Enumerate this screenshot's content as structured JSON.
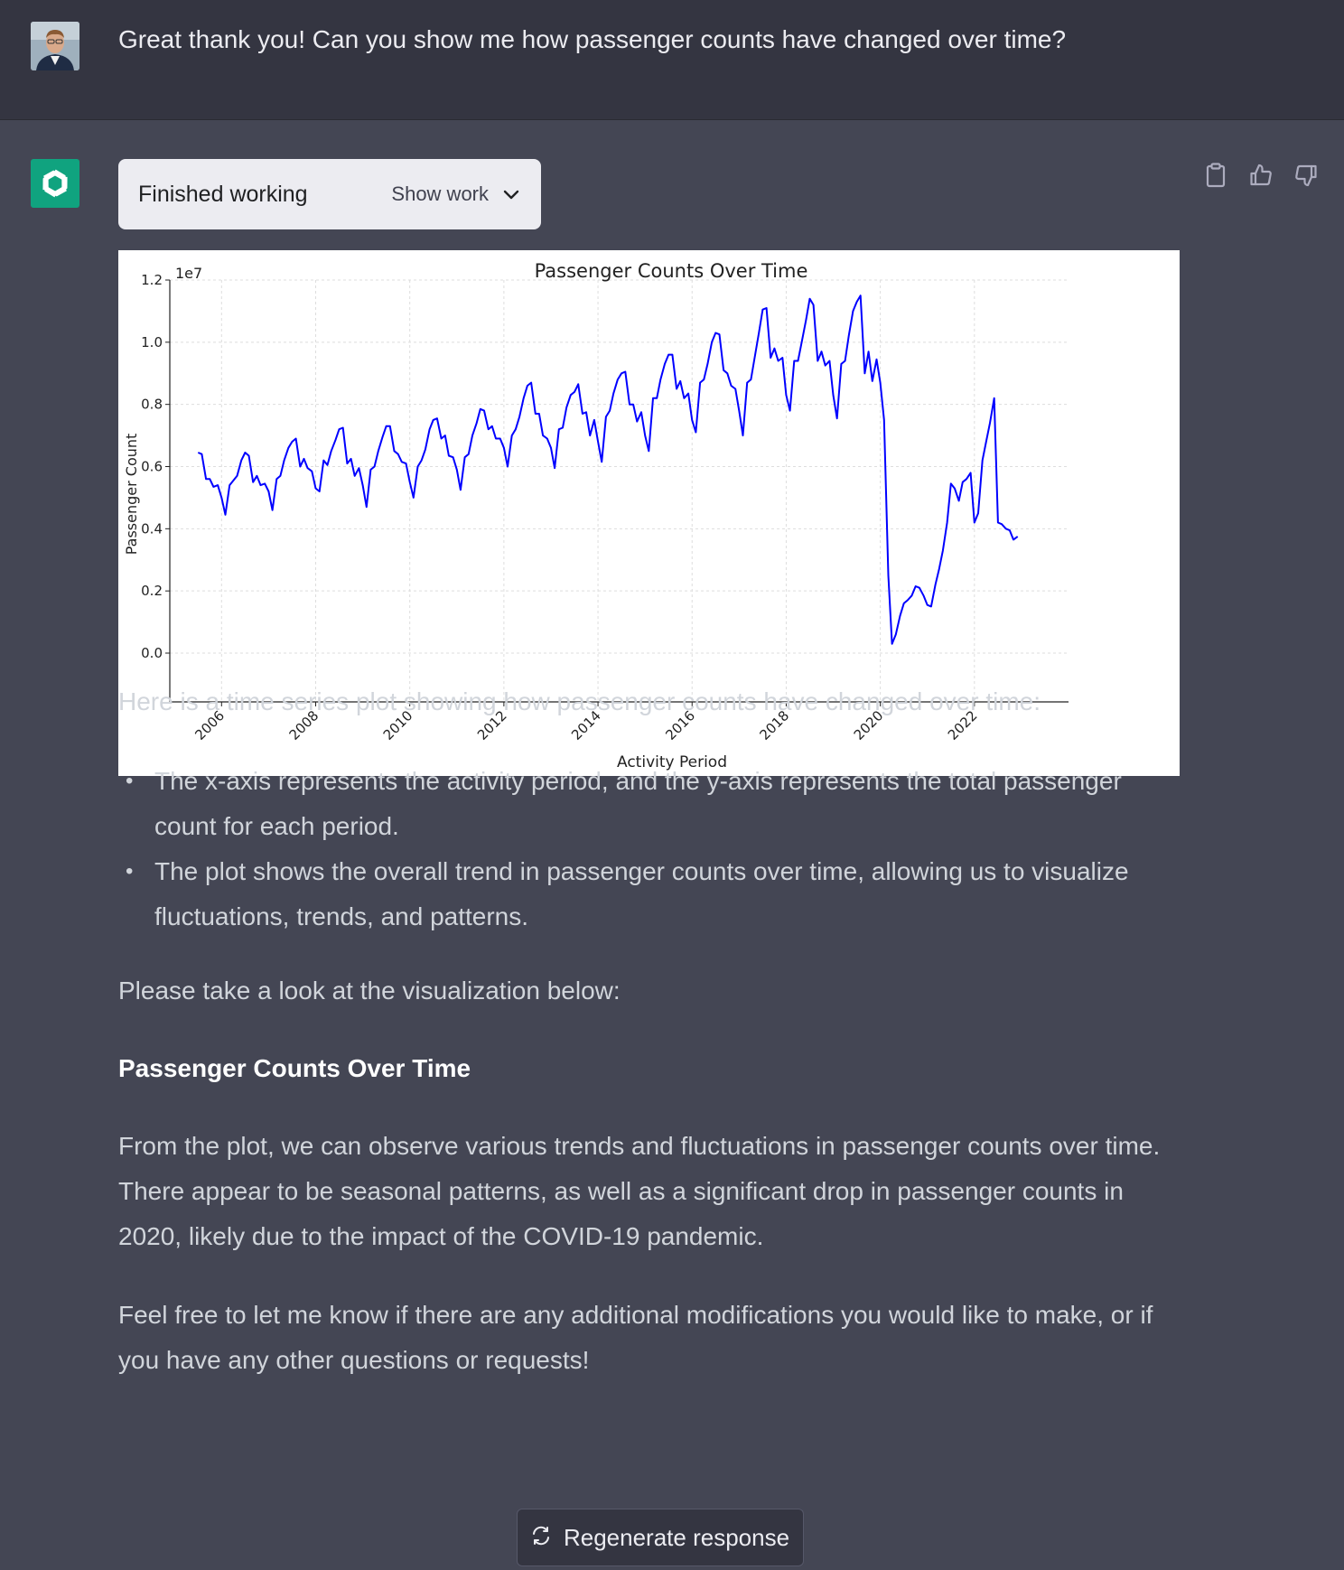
{
  "user_message": {
    "text": "Great thank you! Can you show me how passenger counts have changed over time?"
  },
  "assistant": {
    "work_status": "Finished working",
    "show_work_label": "Show work",
    "actions": [
      "copy-icon",
      "thumbs-up-icon",
      "thumbs-down-icon"
    ],
    "intro": "Here is a time series plot showing how passenger counts have changed over time:",
    "bullets": [
      "The x-axis represents the activity period, and the y-axis represents the total passenger count for each period.",
      "The plot shows the overall trend in passenger counts over time, allowing us to visualize fluctuations, trends, and patterns."
    ],
    "lead_in": "Please take a look at the visualization below:",
    "bold_heading": "Passenger Counts Over Time",
    "observation": "From the plot, we can observe various trends and fluctuations in passenger counts over time. There appear to be seasonal patterns, as well as a significant drop in passenger counts in 2020, likely due to the impact of the COVID-19 pandemic.",
    "closing": "Feel free to let me know if there are any additional modifications you would like to make, or if you have any other questions or requests!"
  },
  "regenerate_label": "Regenerate response",
  "colors": {
    "accent": "#10a37f",
    "line": "#0000ff",
    "page_bg": "#444654",
    "user_bg": "#343541"
  },
  "chart_data": {
    "type": "line",
    "title": "Passenger Counts Over Time",
    "xlabel": "Activity Period",
    "ylabel": "Passenger Count",
    "y_offset_label": "1e7",
    "xlim": [
      2004.9,
      2024.0
    ],
    "ylim": [
      0,
      1.2
    ],
    "xticks": [
      2006,
      2008,
      2010,
      2012,
      2014,
      2016,
      2018,
      2020,
      2022
    ],
    "yticks": [
      0.0,
      0.2,
      0.4,
      0.6,
      0.8,
      1.0,
      1.2
    ],
    "grid": true,
    "series": [
      {
        "x": [
          2005.5,
          2005.58,
          2005.67,
          2005.75,
          2005.83,
          2005.92,
          2006.0,
          2006.08,
          2006.17,
          2006.25,
          2006.33,
          2006.42,
          2006.5,
          2006.58,
          2006.67,
          2006.75,
          2006.83,
          2006.92,
          2007.0,
          2007.08,
          2007.17,
          2007.25,
          2007.33,
          2007.42,
          2007.5,
          2007.58,
          2007.67,
          2007.75,
          2007.83,
          2007.92,
          2008.0,
          2008.08,
          2008.17,
          2008.25,
          2008.33,
          2008.42,
          2008.5,
          2008.58,
          2008.67,
          2008.75,
          2008.83,
          2008.92,
          2009.0,
          2009.08,
          2009.17,
          2009.25,
          2009.33,
          2009.42,
          2009.5,
          2009.58,
          2009.67,
          2009.75,
          2009.83,
          2009.92,
          2010.0,
          2010.08,
          2010.17,
          2010.25,
          2010.33,
          2010.42,
          2010.5,
          2010.58,
          2010.67,
          2010.75,
          2010.83,
          2010.92,
          2011.0,
          2011.08,
          2011.17,
          2011.25,
          2011.33,
          2011.42,
          2011.5,
          2011.58,
          2011.67,
          2011.75,
          2011.83,
          2011.92,
          2012.0,
          2012.08,
          2012.17,
          2012.25,
          2012.33,
          2012.42,
          2012.5,
          2012.58,
          2012.67,
          2012.75,
          2012.83,
          2012.92,
          2013.0,
          2013.08,
          2013.17,
          2013.25,
          2013.33,
          2013.42,
          2013.5,
          2013.58,
          2013.67,
          2013.75,
          2013.83,
          2013.92,
          2014.0,
          2014.08,
          2014.17,
          2014.25,
          2014.33,
          2014.42,
          2014.5,
          2014.58,
          2014.67,
          2014.75,
          2014.83,
          2014.92,
          2015.0,
          2015.08,
          2015.17,
          2015.25,
          2015.33,
          2015.42,
          2015.5,
          2015.58,
          2015.67,
          2015.75,
          2015.83,
          2015.92,
          2016.0,
          2016.08,
          2016.17,
          2016.25,
          2016.33,
          2016.42,
          2016.5,
          2016.58,
          2016.67,
          2016.75,
          2016.83,
          2016.92,
          2017.0,
          2017.08,
          2017.17,
          2017.25,
          2017.33,
          2017.42,
          2017.5,
          2017.58,
          2017.67,
          2017.75,
          2017.83,
          2017.92,
          2018.0,
          2018.08,
          2018.17,
          2018.25,
          2018.33,
          2018.42,
          2018.5,
          2018.58,
          2018.67,
          2018.75,
          2018.83,
          2018.92,
          2019.0,
          2019.08,
          2019.17,
          2019.25,
          2019.33,
          2019.42,
          2019.5,
          2019.58,
          2019.67,
          2019.75,
          2019.83,
          2019.92,
          2020.0,
          2020.08,
          2020.17,
          2020.25,
          2020.33,
          2020.42,
          2020.5,
          2020.58,
          2020.67,
          2020.75,
          2020.83,
          2020.92,
          2021.0,
          2021.08,
          2021.17,
          2021.25,
          2021.33,
          2021.42,
          2021.5,
          2021.58,
          2021.67,
          2021.75,
          2021.83,
          2021.92,
          2022.0,
          2022.08,
          2022.17,
          2022.25,
          2022.33,
          2022.42,
          2022.5,
          2022.58,
          2022.67,
          2022.75,
          2022.83,
          2022.92
        ],
        "values": [
          0.645,
          0.64,
          0.56,
          0.56,
          0.535,
          0.54,
          0.5,
          0.445,
          0.54,
          0.555,
          0.57,
          0.62,
          0.645,
          0.635,
          0.55,
          0.57,
          0.54,
          0.545,
          0.52,
          0.46,
          0.56,
          0.57,
          0.62,
          0.66,
          0.68,
          0.69,
          0.6,
          0.625,
          0.595,
          0.585,
          0.53,
          0.52,
          0.62,
          0.605,
          0.65,
          0.685,
          0.72,
          0.725,
          0.61,
          0.625,
          0.57,
          0.595,
          0.54,
          0.47,
          0.59,
          0.6,
          0.65,
          0.695,
          0.73,
          0.73,
          0.65,
          0.64,
          0.615,
          0.61,
          0.55,
          0.5,
          0.6,
          0.62,
          0.655,
          0.72,
          0.75,
          0.755,
          0.69,
          0.7,
          0.635,
          0.63,
          0.59,
          0.525,
          0.63,
          0.64,
          0.7,
          0.74,
          0.785,
          0.78,
          0.72,
          0.73,
          0.69,
          0.69,
          0.66,
          0.6,
          0.7,
          0.72,
          0.76,
          0.82,
          0.86,
          0.87,
          0.77,
          0.77,
          0.7,
          0.69,
          0.66,
          0.595,
          0.72,
          0.725,
          0.79,
          0.83,
          0.84,
          0.865,
          0.77,
          0.775,
          0.7,
          0.75,
          0.68,
          0.615,
          0.76,
          0.78,
          0.835,
          0.88,
          0.9,
          0.905,
          0.8,
          0.8,
          0.745,
          0.775,
          0.7,
          0.65,
          0.82,
          0.82,
          0.88,
          0.93,
          0.96,
          0.96,
          0.85,
          0.875,
          0.82,
          0.835,
          0.75,
          0.71,
          0.87,
          0.88,
          0.93,
          1.0,
          1.03,
          1.025,
          0.91,
          0.9,
          0.86,
          0.85,
          0.78,
          0.7,
          0.87,
          0.88,
          0.95,
          1.03,
          1.105,
          1.11,
          0.95,
          0.98,
          0.94,
          0.95,
          0.83,
          0.78,
          0.94,
          0.94,
          1.0,
          1.07,
          1.14,
          1.12,
          0.94,
          0.97,
          0.925,
          0.94,
          0.83,
          0.755,
          0.93,
          0.94,
          1.02,
          1.1,
          1.13,
          1.15,
          0.9,
          0.97,
          0.875,
          0.945,
          0.87,
          0.75,
          0.25,
          0.03,
          0.06,
          0.12,
          0.16,
          0.17,
          0.185,
          0.215,
          0.21,
          0.185,
          0.155,
          0.15,
          0.22,
          0.27,
          0.33,
          0.42,
          0.545,
          0.53,
          0.49,
          0.55,
          0.56,
          0.58,
          0.42,
          0.45,
          0.62,
          0.68,
          0.74,
          0.82,
          0.42,
          0.415,
          0.4,
          0.395,
          0.365,
          0.375
        ]
      }
    ]
  }
}
